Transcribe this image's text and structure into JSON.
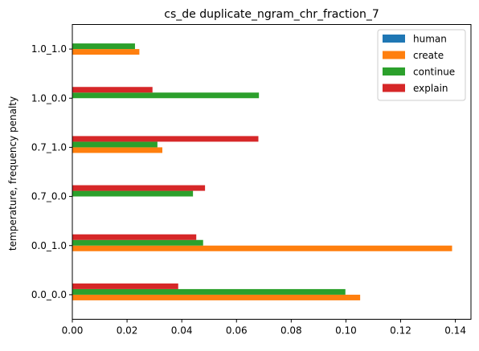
{
  "chart_data": {
    "type": "bar",
    "orientation": "horizontal",
    "title": "cs_de duplicate_ngram_chr_fraction_7",
    "xlabel": "",
    "ylabel": "temperature, frequency penalty",
    "categories": [
      "0.0_0.0",
      "0.0_1.0",
      "0.7_0.0",
      "0.7_1.0",
      "1.0_0.0",
      "1.0_1.0"
    ],
    "series": [
      {
        "name": "human",
        "color": "#1f77b4",
        "values": [
          0,
          0,
          0,
          0,
          0,
          0
        ]
      },
      {
        "name": "create",
        "color": "#ff7f0e",
        "values": [
          0.1052,
          0.1388,
          0,
          0.0329,
          0,
          0.0245
        ]
      },
      {
        "name": "continue",
        "color": "#2ca02c",
        "values": [
          0.0998,
          0.0478,
          0.0441,
          0.0311,
          0.0682,
          0.0229
        ]
      },
      {
        "name": "explain",
        "color": "#d62728",
        "values": [
          0.0387,
          0.0453,
          0.0485,
          0.068,
          0.0293,
          0
        ]
      }
    ],
    "xlim": [
      0,
      0.1457
    ],
    "xticks": [
      "0.00",
      "0.02",
      "0.04",
      "0.06",
      "0.08",
      "0.10",
      "0.12",
      "0.14"
    ],
    "xtick_values": [
      0,
      0.02,
      0.04,
      0.06,
      0.08,
      0.1,
      0.12,
      0.14
    ],
    "grid": false,
    "legend_position": "top-right"
  }
}
